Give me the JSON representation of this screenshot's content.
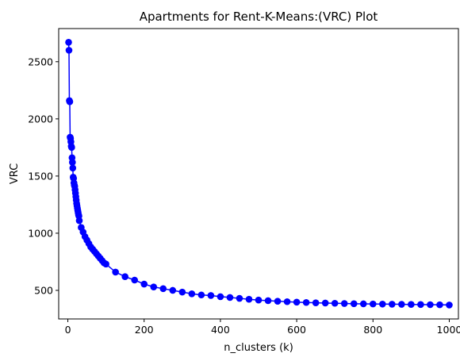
{
  "chart_data": {
    "type": "line",
    "title": "Apartments for Rent-K-Means:(VRC) Plot",
    "xlabel": "n_clusters (k)",
    "ylabel": "VRC",
    "xlim": [
      -24,
      1024
    ],
    "ylim": [
      250,
      2790
    ],
    "xticks": [
      0,
      200,
      400,
      600,
      800,
      1000
    ],
    "yticks": [
      500,
      1000,
      1500,
      2000,
      2500
    ],
    "grid": false,
    "legend": "none",
    "series": [
      {
        "color": "#0000ff",
        "marker": "circle",
        "x": [
          2,
          3,
          4,
          5,
          6,
          7,
          8,
          9,
          10,
          11,
          12,
          13,
          14,
          15,
          16,
          17,
          18,
          19,
          20,
          21,
          22,
          23,
          24,
          25,
          26,
          27,
          28,
          29,
          30,
          35,
          40,
          45,
          50,
          55,
          60,
          65,
          70,
          75,
          80,
          85,
          90,
          95,
          100,
          125,
          150,
          175,
          200,
          225,
          250,
          275,
          300,
          325,
          350,
          375,
          400,
          425,
          450,
          475,
          500,
          525,
          550,
          575,
          600,
          625,
          650,
          675,
          700,
          725,
          750,
          775,
          800,
          825,
          850,
          875,
          900,
          925,
          950,
          975,
          1000
        ],
        "y": [
          2670,
          2600,
          2160,
          2150,
          1840,
          1830,
          1800,
          1760,
          1750,
          1660,
          1620,
          1570,
          1490,
          1480,
          1440,
          1420,
          1410,
          1380,
          1350,
          1320,
          1290,
          1260,
          1240,
          1220,
          1200,
          1180,
          1160,
          1150,
          1110,
          1050,
          1010,
          970,
          940,
          910,
          880,
          860,
          840,
          820,
          800,
          780,
          760,
          740,
          730,
          660,
          620,
          590,
          555,
          530,
          515,
          500,
          485,
          470,
          460,
          455,
          445,
          438,
          430,
          422,
          415,
          410,
          405,
          401,
          397,
          394,
          391,
          389,
          387,
          385,
          383,
          382,
          381,
          380,
          379,
          378,
          377,
          376,
          375,
          374,
          372
        ]
      }
    ]
  }
}
